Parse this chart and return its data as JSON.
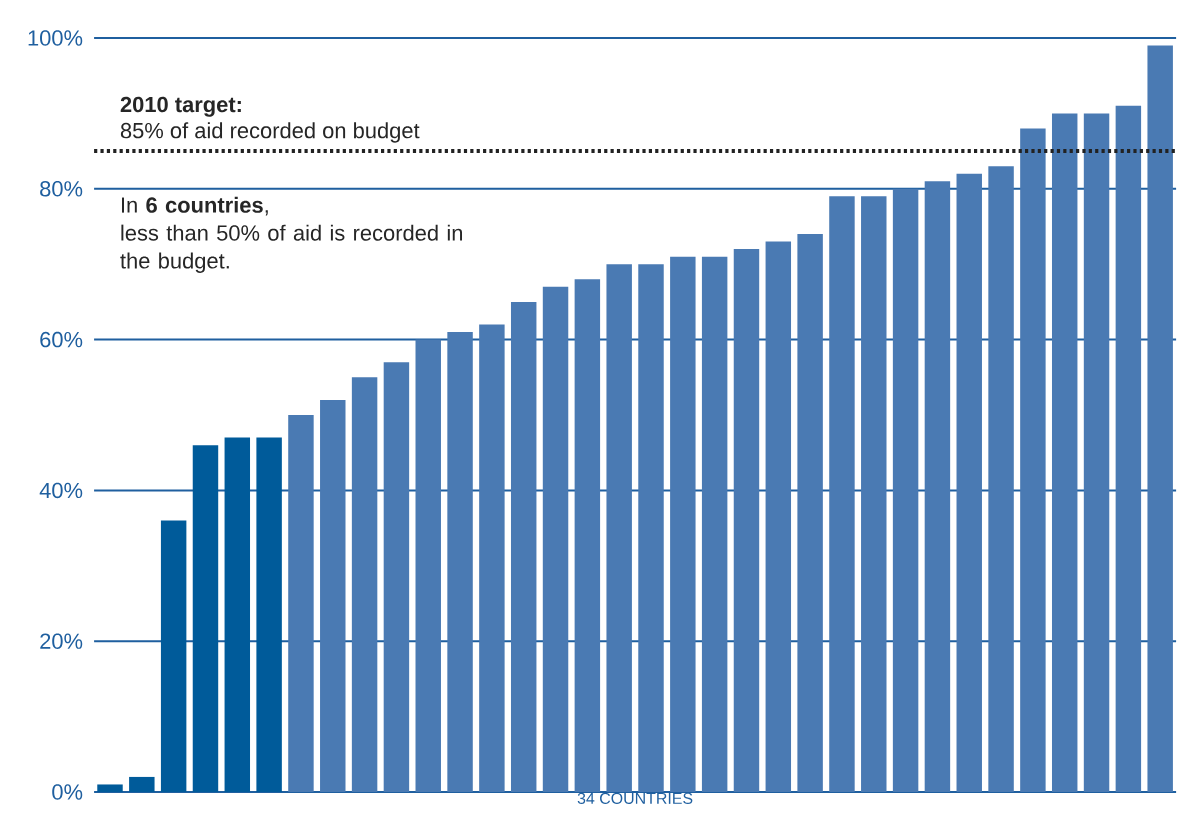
{
  "chart_data": {
    "type": "bar",
    "xlabel": "34 COUNTRIES",
    "categories": [
      null,
      null,
      null,
      null,
      null,
      null,
      null,
      null,
      null,
      null,
      null,
      null,
      null,
      null,
      null,
      null,
      null,
      null,
      null,
      null,
      null,
      null,
      null,
      null,
      null,
      null,
      null,
      null,
      null,
      null,
      null,
      null,
      null,
      null
    ],
    "values": [
      1,
      2,
      36,
      46,
      47,
      47,
      50,
      52,
      55,
      57,
      60,
      61,
      62,
      65,
      67,
      68,
      70,
      70,
      71,
      71,
      72,
      73,
      74,
      79,
      79,
      80,
      81,
      82,
      83,
      88,
      90,
      90,
      91,
      99
    ],
    "colors": [
      "#005b9a",
      "#005b9a",
      "#005b9a",
      "#005b9a",
      "#005b9a",
      "#005b9a",
      "#4a7ab3",
      "#4a7ab3",
      "#4a7ab3",
      "#4a7ab3",
      "#4a7ab3",
      "#4a7ab3",
      "#4a7ab3",
      "#4a7ab3",
      "#4a7ab3",
      "#4a7ab3",
      "#4a7ab3",
      "#4a7ab3",
      "#4a7ab3",
      "#4a7ab3",
      "#4a7ab3",
      "#4a7ab3",
      "#4a7ab3",
      "#4a7ab3",
      "#4a7ab3",
      "#4a7ab3",
      "#4a7ab3",
      "#4a7ab3",
      "#4a7ab3",
      "#4a7ab3",
      "#4a7ab3",
      "#4a7ab3",
      "#4a7ab3",
      "#4a7ab3"
    ],
    "ylim": [
      0,
      100
    ],
    "yticks": [
      {
        "value": 0,
        "label": "0%"
      },
      {
        "value": 20,
        "label": "20%"
      },
      {
        "value": 40,
        "label": "40%"
      },
      {
        "value": 60,
        "label": "60%"
      },
      {
        "value": 80,
        "label": "80%"
      },
      {
        "value": 100,
        "label": "100%"
      }
    ],
    "grid": "y",
    "ref_lines": [
      {
        "axis": "y",
        "value": 85,
        "label": "2010 target:",
        "color": "#222222",
        "line_style": "dotted"
      }
    ],
    "annotations": [
      {
        "text": "85% of aid recorded on budget",
        "y": 85
      },
      "In **6 countries**,",
      "less than 50% of aid is recorded in the budget."
    ]
  }
}
